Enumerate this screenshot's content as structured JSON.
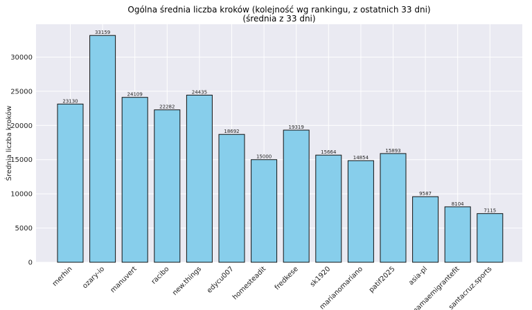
{
  "chart_data": {
    "type": "bar",
    "title": "Ogólna średnia liczba kroków (kolejność wg rankingu, z ostatnich 33 dni)",
    "subtitle": "(średnia z 33 dni)",
    "xlabel": "",
    "ylabel": "Średnia liczba kroków",
    "ylim": [
      0,
      34800
    ],
    "yticks": [
      0,
      5000,
      10000,
      15000,
      20000,
      25000,
      30000
    ],
    "grid": true,
    "categories": [
      "merhin",
      "ozary-io",
      "manuvert",
      "racibo",
      "new.things",
      "edycu007",
      "homesteadit",
      "fredkese",
      "sk1920",
      "marianomariano",
      "patif2025",
      "asia-pl",
      "mamaemigrantefit",
      "santacruz.sports"
    ],
    "values": [
      23130,
      33159,
      24109,
      22282,
      24435,
      18692,
      15000,
      19319,
      15664,
      14854,
      15893,
      9587,
      8104,
      7115
    ],
    "colors": {
      "bar": "#87ceeb",
      "bar_edge": "#111111",
      "plot_bg": "#eaeaf2",
      "grid": "#ffffff"
    }
  }
}
